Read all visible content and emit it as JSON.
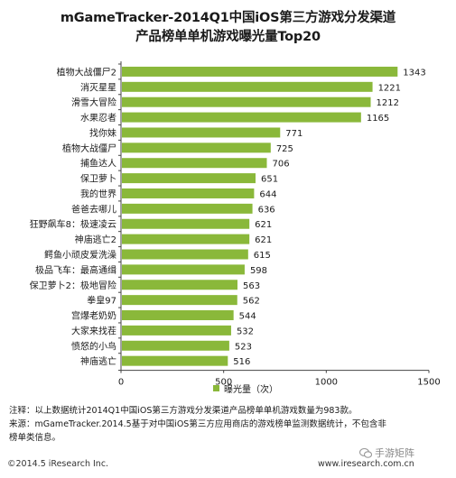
{
  "title_lines": [
    "mGameTracker-2014Q1中国iOS第三方游戏分发渠道",
    "产品榜单单机游戏曝光量Top20"
  ],
  "chart_data": {
    "type": "bar",
    "orientation": "horizontal",
    "categories": [
      "植物大战僵尸2",
      "消灭星星",
      "滑雪大冒险",
      "水果忍者",
      "找你妹",
      "植物大战僵尸",
      "捕鱼达人",
      "保卫萝卜",
      "我的世界",
      "爸爸去哪儿",
      "狂野飙车8：极速凌云",
      "神庙逃亡2",
      "鳄鱼小顽皮爱洗澡",
      "极品飞车：最高通缉",
      "保卫萝卜2：极地冒险",
      "拳皇97",
      "宫爆老奶奶",
      "大家来找茬",
      "愤怒的小鸟",
      "神庙逃亡"
    ],
    "values": [
      1343,
      1221,
      1212,
      1165,
      771,
      725,
      706,
      651,
      644,
      636,
      621,
      621,
      615,
      598,
      563,
      562,
      544,
      532,
      523,
      516
    ],
    "xlim": [
      0,
      1500
    ],
    "xticks": [
      "0",
      "500",
      "1000",
      "1500"
    ],
    "legend": "曝光量（次）",
    "legend_placement": "bottom",
    "grid": false,
    "value_labels": true
  },
  "colors": {
    "bar": "#8ab83a",
    "axis": "#444444"
  },
  "notes": [
    "注释：以上数据统计2014Q1中国iOS第三方游戏分发渠道产品榜单单机游戏数量为983款。",
    "来源：mGameTracker.2014.5基于对中国iOS第三方应用商店的游戏榜单监测数据统计，不包含非",
    "榜单类信息。"
  ],
  "footer": {
    "copyright": "©2014.5 iResearch Inc.",
    "website": "www.iresearch.com.cn",
    "watermark": "手游矩阵",
    "watermark_icon": "wechat-icon"
  }
}
